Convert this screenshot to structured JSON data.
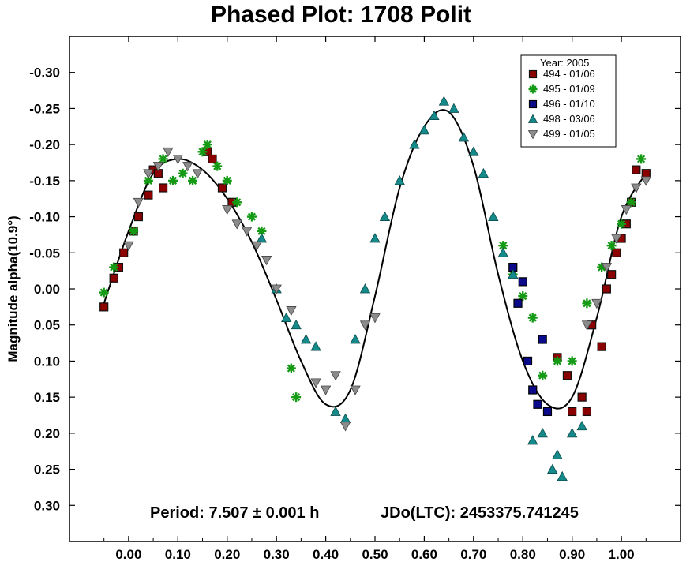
{
  "chart_data": {
    "type": "scatter",
    "title": "Phased Plot: 1708 Polit",
    "ylabel": "Magnitude alpha(10.9°)",
    "xlabel": "",
    "xlim": [
      -0.12,
      1.12
    ],
    "ylim": [
      0.35,
      -0.35
    ],
    "y_inverted": true,
    "x_ticks": [
      "0.00",
      "0.10",
      "0.20",
      "0.30",
      "0.40",
      "0.50",
      "0.60",
      "0.70",
      "0.80",
      "0.90",
      "1.00"
    ],
    "x_tick_values": [
      0,
      0.1,
      0.2,
      0.3,
      0.4,
      0.5,
      0.6,
      0.7,
      0.8,
      0.9,
      1.0
    ],
    "y_ticks": [
      "-0.30",
      "-0.25",
      "-0.20",
      "-0.15",
      "-0.10",
      "-0.05",
      "0.00",
      "0.05",
      "0.10",
      "0.15",
      "0.20",
      "0.25",
      "0.30"
    ],
    "y_tick_values": [
      -0.3,
      -0.25,
      -0.2,
      -0.15,
      -0.1,
      -0.05,
      0,
      0.05,
      0.1,
      0.15,
      0.2,
      0.25,
      0.3
    ],
    "grid": false,
    "legend": {
      "title": "Year: 2005",
      "position": "top-right"
    },
    "annotation": {
      "period": "Period: 7.507 ± 0.001 h",
      "jdo": "JDo(LTC): 2453375.741245"
    },
    "fit_curve": {
      "name": "",
      "x": [
        -0.05,
        0.0,
        0.05,
        0.1,
        0.15,
        0.2,
        0.25,
        0.3,
        0.35,
        0.4,
        0.45,
        0.5,
        0.55,
        0.6,
        0.65,
        0.7,
        0.75,
        0.8,
        0.85,
        0.9,
        0.95,
        1.0,
        1.05
      ],
      "y": [
        0.02,
        -0.08,
        -0.16,
        -0.18,
        -0.165,
        -0.125,
        -0.065,
        0.015,
        0.1,
        0.16,
        0.14,
        0.01,
        -0.14,
        -0.225,
        -0.245,
        -0.17,
        -0.02,
        0.1,
        0.16,
        0.15,
        0.04,
        -0.1,
        -0.16
      ]
    },
    "series": [
      {
        "name": "494 - 01/06",
        "marker": "square",
        "color": "#8b0000",
        "x": [
          -0.05,
          -0.03,
          -0.02,
          -0.01,
          0.01,
          0.02,
          0.04,
          0.05,
          0.06,
          0.07,
          0.16,
          0.17,
          0.19,
          0.21,
          0.87,
          0.89,
          0.9,
          0.92,
          0.93,
          0.94,
          0.96,
          0.97,
          0.98,
          0.99,
          1.0,
          1.01,
          1.02,
          1.03,
          1.05
        ],
        "y": [
          0.025,
          -0.015,
          -0.03,
          -0.05,
          -0.08,
          -0.1,
          -0.13,
          -0.165,
          -0.16,
          -0.14,
          -0.19,
          -0.18,
          -0.14,
          -0.12,
          0.095,
          0.12,
          0.17,
          0.15,
          0.17,
          0.05,
          0.08,
          0.0,
          -0.02,
          -0.05,
          -0.07,
          -0.09,
          -0.12,
          -0.165,
          -0.16
        ]
      },
      {
        "name": "495 - 01/09",
        "marker": "asterisk",
        "color": "#159a15",
        "x": [
          -0.05,
          -0.03,
          0.01,
          0.04,
          0.07,
          0.09,
          0.11,
          0.13,
          0.15,
          0.16,
          0.18,
          0.2,
          0.22,
          0.25,
          0.27,
          0.33,
          0.34,
          0.76,
          0.78,
          0.8,
          0.82,
          0.84,
          0.87,
          0.9,
          0.93,
          0.96,
          0.98,
          1.0,
          1.02,
          1.04
        ],
        "y": [
          0.005,
          -0.03,
          -0.08,
          -0.15,
          -0.18,
          -0.15,
          -0.16,
          -0.15,
          -0.19,
          -0.2,
          -0.17,
          -0.15,
          -0.12,
          -0.1,
          -0.08,
          0.11,
          0.15,
          -0.06,
          -0.02,
          0.01,
          0.04,
          0.12,
          0.1,
          0.1,
          0.02,
          -0.03,
          -0.06,
          -0.09,
          -0.12,
          -0.18
        ]
      },
      {
        "name": "496 - 01/10",
        "marker": "square",
        "color": "#0a0a8a",
        "x": [
          0.78,
          0.79,
          0.8,
          0.81,
          0.82,
          0.83,
          0.84,
          0.85
        ],
        "y": [
          -0.03,
          0.02,
          -0.01,
          0.1,
          0.14,
          0.16,
          0.07,
          0.17
        ]
      },
      {
        "name": "498 - 03/06",
        "marker": "triangle",
        "color": "#158a8a",
        "x": [
          0.27,
          0.3,
          0.32,
          0.34,
          0.36,
          0.38,
          0.42,
          0.44,
          0.46,
          0.48,
          0.5,
          0.52,
          0.55,
          0.58,
          0.6,
          0.62,
          0.64,
          0.66,
          0.68,
          0.7,
          0.72,
          0.74,
          0.76,
          0.78,
          0.82,
          0.84,
          0.86,
          0.87,
          0.88,
          0.9,
          0.92
        ],
        "y": [
          -0.07,
          0.0,
          0.04,
          0.05,
          0.07,
          0.08,
          0.17,
          0.18,
          0.07,
          0.0,
          -0.07,
          -0.1,
          -0.15,
          -0.2,
          -0.22,
          -0.24,
          -0.26,
          -0.25,
          -0.21,
          -0.19,
          -0.16,
          -0.1,
          -0.05,
          -0.02,
          0.21,
          0.2,
          0.25,
          0.23,
          0.26,
          0.2,
          0.19
        ]
      },
      {
        "name": "499 - 01/05",
        "marker": "invtriangle",
        "color": "#8c8c8c",
        "x": [
          0.0,
          0.02,
          0.04,
          0.06,
          0.08,
          0.1,
          0.12,
          0.14,
          0.2,
          0.22,
          0.24,
          0.26,
          0.28,
          0.3,
          0.33,
          0.38,
          0.4,
          0.42,
          0.44,
          0.46,
          0.48,
          0.5,
          0.93,
          0.95,
          0.97,
          0.99,
          1.01,
          1.03,
          1.05
        ],
        "y": [
          -0.06,
          -0.12,
          -0.16,
          -0.17,
          -0.19,
          -0.18,
          -0.17,
          -0.16,
          -0.11,
          -0.09,
          -0.08,
          -0.06,
          -0.04,
          0.0,
          0.03,
          0.13,
          0.14,
          0.12,
          0.19,
          0.14,
          0.05,
          0.04,
          0.05,
          0.02,
          -0.03,
          -0.07,
          -0.11,
          -0.14,
          -0.15
        ]
      }
    ]
  }
}
